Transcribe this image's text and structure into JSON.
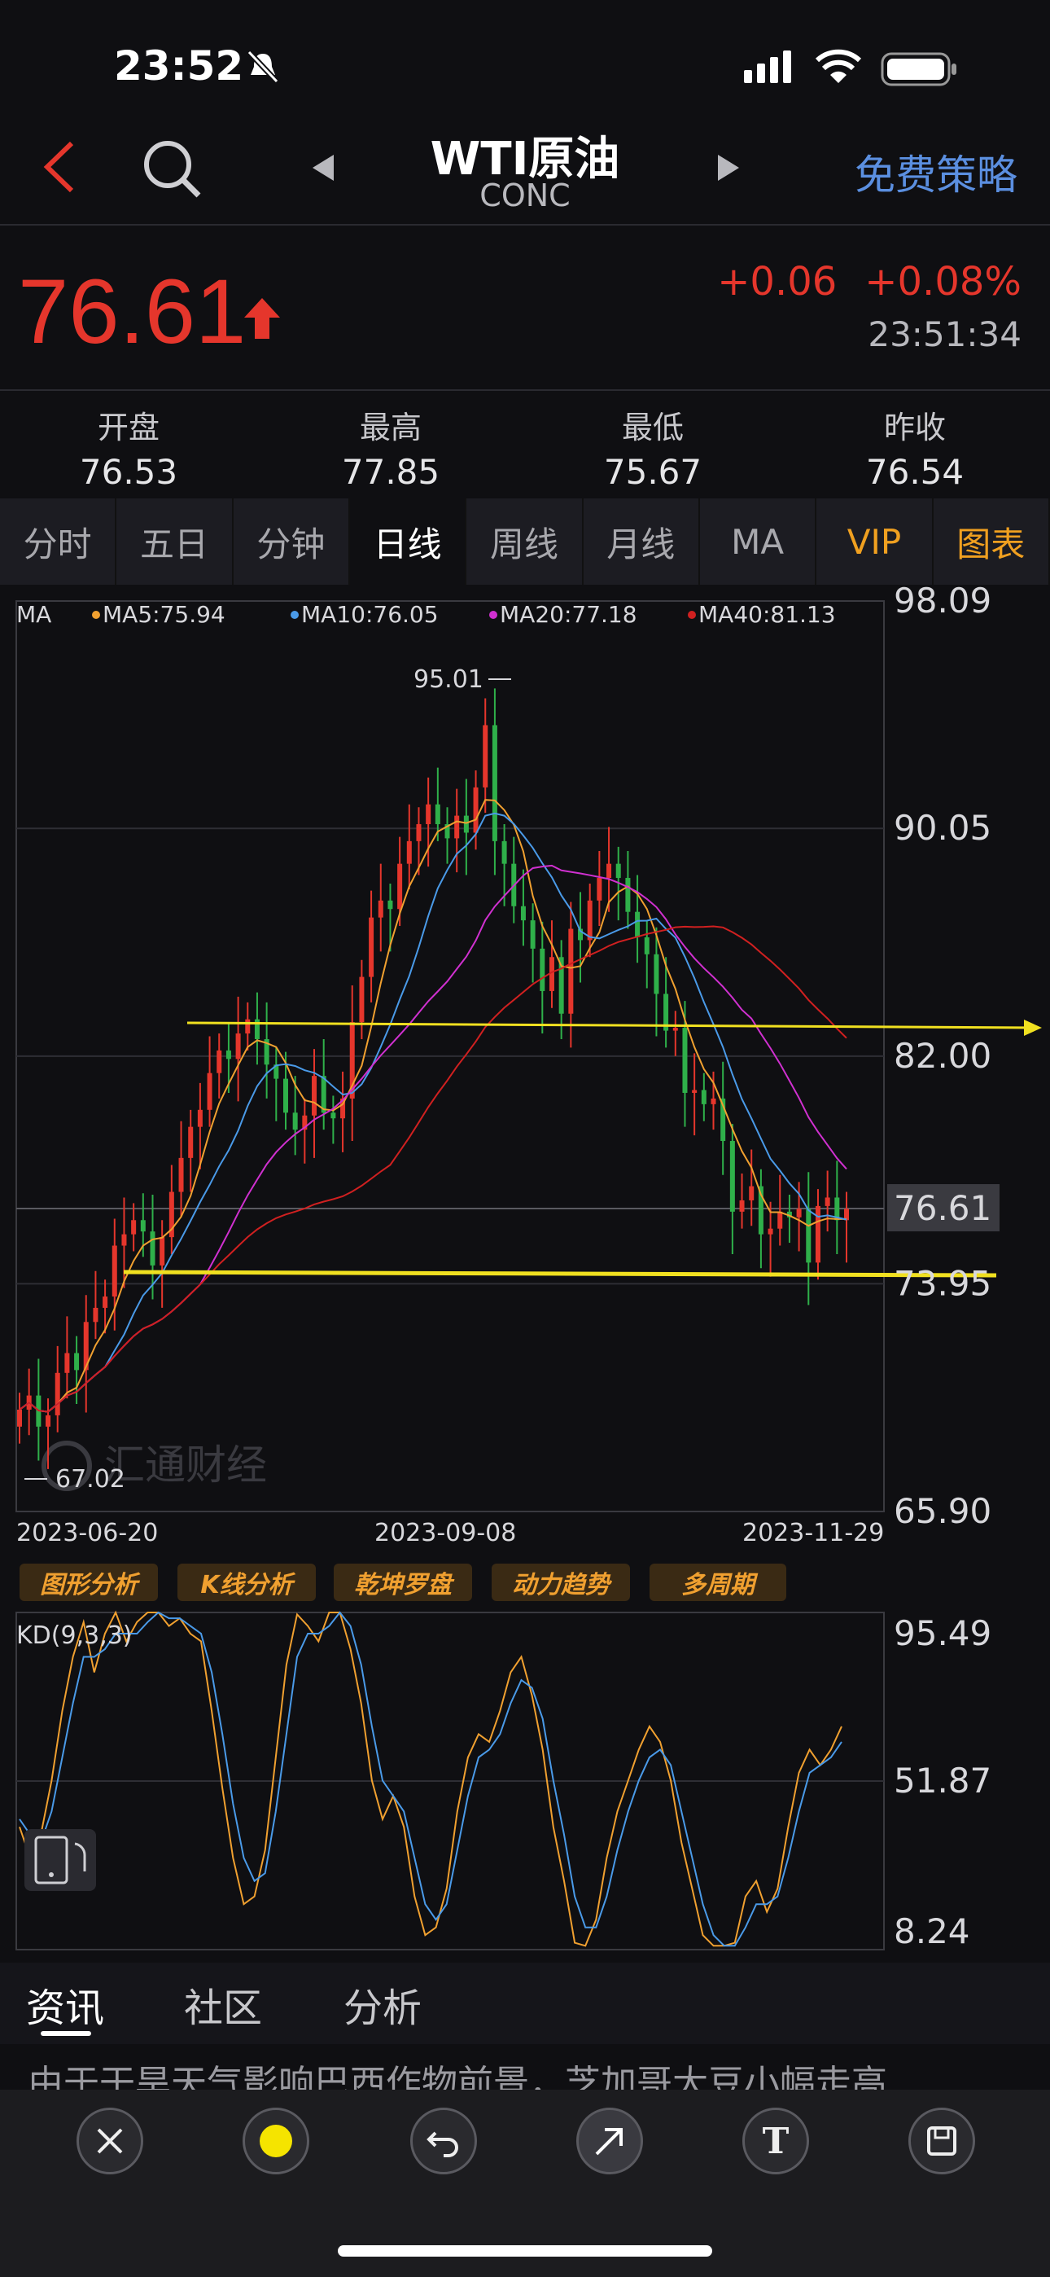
{
  "status": {
    "time": "23:52"
  },
  "nav": {
    "title": "WTI原油",
    "code": "CONC",
    "strategy": "免费策略"
  },
  "quote": {
    "price": "76.61",
    "change": "+0.06",
    "change_pct": "+0.08%",
    "time": "23:51:34"
  },
  "stats": [
    {
      "label": "开盘",
      "value": "76.53"
    },
    {
      "label": "最高",
      "value": "77.85"
    },
    {
      "label": "最低",
      "value": "75.67"
    },
    {
      "label": "昨收",
      "value": "76.54"
    }
  ],
  "tabs": [
    "分时",
    "五日",
    "分钟",
    "日线",
    "周线",
    "月线",
    "MA",
    "VIP",
    "图表"
  ],
  "active_tab": "日线",
  "ma_legend": {
    "label": "MA",
    "ma5": "MA5:75.94",
    "ma10": "MA10:76.05",
    "ma20": "MA20:77.18",
    "ma40": "MA40:81.13"
  },
  "price_axis": [
    "98.09",
    "90.05",
    "82.00",
    "76.61",
    "73.95",
    "65.90"
  ],
  "annotations": {
    "high": "95.01",
    "low": "67.02",
    "watermark": "汇通财经"
  },
  "date_axis": [
    "2023-06-20",
    "2023-09-08",
    "2023-11-29"
  ],
  "tools": [
    "图形分析",
    "K线分析",
    "乾坤罗盘",
    "动力趋势",
    "多周期"
  ],
  "kd": {
    "label": "KD(9,3,3)",
    "axis": [
      "95.49",
      "51.87",
      "8.24"
    ]
  },
  "news_tabs": [
    "资讯",
    "社区",
    "分析"
  ],
  "news_headline": "由于干旱天气影响巴西作物前景，芝加哥大豆小幅走高",
  "colors": {
    "up": "#e5362c",
    "down": "#2fb04a",
    "ma5": "#f0a030",
    "ma10": "#4a9ae8",
    "ma20": "#d030d0",
    "ma40": "#d02020",
    "trendline": "#f0e020"
  },
  "chart_data": [
    {
      "type": "candlestick",
      "title": "WTI原油 日线",
      "ylim": [
        65.9,
        98.09
      ],
      "x_start": "2023-06-20",
      "x_end": "2023-11-29",
      "close": [
        69.5,
        70.0,
        68.9,
        69.3,
        70.8,
        71.5,
        70.9,
        72.6,
        73.1,
        73.5,
        75.3,
        75.7,
        76.2,
        75.8,
        74.6,
        75.6,
        77.2,
        78.4,
        79.5,
        80.1,
        81.4,
        82.2,
        81.9,
        82.8,
        83.3,
        82.6,
        81.7,
        81.2,
        80.0,
        79.4,
        79.9,
        81.3,
        80.0,
        79.8,
        80.5,
        83.2,
        84.8,
        86.9,
        87.5,
        87.2,
        88.8,
        89.6,
        90.2,
        90.9,
        90.2,
        89.7,
        90.5,
        89.9,
        91.5,
        93.7,
        89.6,
        88.8,
        87.3,
        86.8,
        85.8,
        84.3,
        85.5,
        83.5,
        86.5,
        86.1,
        87.5,
        88.3,
        88.8,
        88.3,
        87.1,
        86.2,
        85.6,
        84.2,
        82.9,
        83.0,
        80.7,
        80.8,
        80.3,
        80.5,
        79.0,
        76.5,
        76.9,
        77.4,
        75.7,
        75.9,
        76.5,
        76.3,
        76.6,
        74.7,
        76.7,
        77.0,
        76.2,
        76.6
      ]
    },
    {
      "type": "line",
      "title": "KD(9,3,3)",
      "ylim": [
        8.24,
        95.49
      ],
      "series": [
        {
          "name": "K",
          "values": [
            40,
            32,
            38,
            52,
            70,
            84,
            93,
            80,
            90,
            96,
            88,
            93,
            97,
            99,
            92,
            94,
            90,
            88,
            70,
            50,
            32,
            20,
            22,
            34,
            58,
            82,
            95,
            92,
            88,
            96,
            100,
            86,
            72,
            52,
            42,
            48,
            40,
            22,
            12,
            14,
            24,
            44,
            58,
            64,
            62,
            70,
            80,
            84,
            74,
            60,
            40,
            26,
            10,
            8,
            16,
            32,
            44,
            52,
            60,
            66,
            62,
            52,
            36,
            24,
            12,
            6,
            4,
            10,
            22,
            26,
            18,
            24,
            40,
            54,
            60,
            56,
            60,
            66
          ]
        },
        {
          "name": "D",
          "values": [
            42,
            38,
            36,
            44,
            58,
            72,
            84,
            84,
            86,
            90,
            90,
            90,
            93,
            96,
            94,
            94,
            92,
            90,
            80,
            64,
            46,
            32,
            26,
            28,
            44,
            64,
            84,
            90,
            90,
            92,
            96,
            92,
            82,
            66,
            52,
            48,
            44,
            32,
            20,
            16,
            20,
            34,
            48,
            58,
            60,
            64,
            72,
            78,
            76,
            68,
            52,
            38,
            22,
            14,
            14,
            22,
            34,
            44,
            52,
            58,
            60,
            56,
            44,
            32,
            20,
            12,
            8,
            8,
            14,
            20,
            20,
            22,
            32,
            44,
            54,
            56,
            58,
            62
          ]
        }
      ]
    }
  ]
}
